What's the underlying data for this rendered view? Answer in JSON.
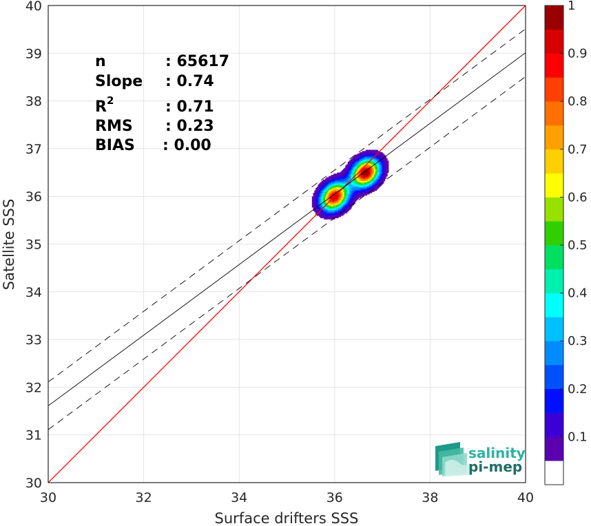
{
  "chart_data": {
    "type": "density-scatter",
    "xlabel": "Surface drifters SSS",
    "ylabel": "Satellite SSS",
    "xlim": [
      30,
      40
    ],
    "ylim": [
      30,
      40
    ],
    "x_ticks": [
      "30",
      "32",
      "34",
      "36",
      "38",
      "40"
    ],
    "y_ticks": [
      "30",
      "31",
      "32",
      "33",
      "34",
      "35",
      "36",
      "37",
      "38",
      "39",
      "40"
    ],
    "grid": true,
    "stats": [
      {
        "label": "n",
        "value": ": 65617"
      },
      {
        "label": "Slope",
        "value": ": 0.74"
      },
      {
        "label": "R",
        "sup": "2",
        "value": ": 0.71"
      },
      {
        "label": "RMS",
        "value": ": 0.23"
      },
      {
        "label": "BIAS",
        "value": ": 0.00"
      }
    ],
    "identity_line": {
      "slope": 1,
      "intercept": 0,
      "color": "#ff0000"
    },
    "fit_line": {
      "slope": 0.74,
      "intercept": 9.41
    },
    "fit_offset": 0.5,
    "density_peaks": [
      {
        "x": 36.0,
        "y": 36.0,
        "weight": 0.95
      },
      {
        "x": 36.65,
        "y": 36.5,
        "weight": 1.0
      }
    ],
    "colorbar": {
      "range": [
        0,
        1
      ],
      "ticks": [
        "0.1",
        "0.2",
        "0.3",
        "0.4",
        "0.5",
        "0.6",
        "0.7",
        "0.8",
        "0.9",
        "1"
      ],
      "tick_values": [
        0.1,
        0.2,
        0.3,
        0.4,
        0.5,
        0.6,
        0.7,
        0.8,
        0.9,
        1.0
      ],
      "colors": [
        "#ffffff",
        "#5b00b0",
        "#3a00d6",
        "#0010ff",
        "#0050ff",
        "#008cff",
        "#00c0ff",
        "#00ffff",
        "#00f0b0",
        "#00e060",
        "#30d000",
        "#98e000",
        "#ffff00",
        "#ffd000",
        "#ffa000",
        "#ff7000",
        "#ff4000",
        "#ff0000",
        "#d80000",
        "#9a0000"
      ]
    }
  },
  "logo": {
    "line1": "salinity",
    "line2": "pi-mep"
  }
}
